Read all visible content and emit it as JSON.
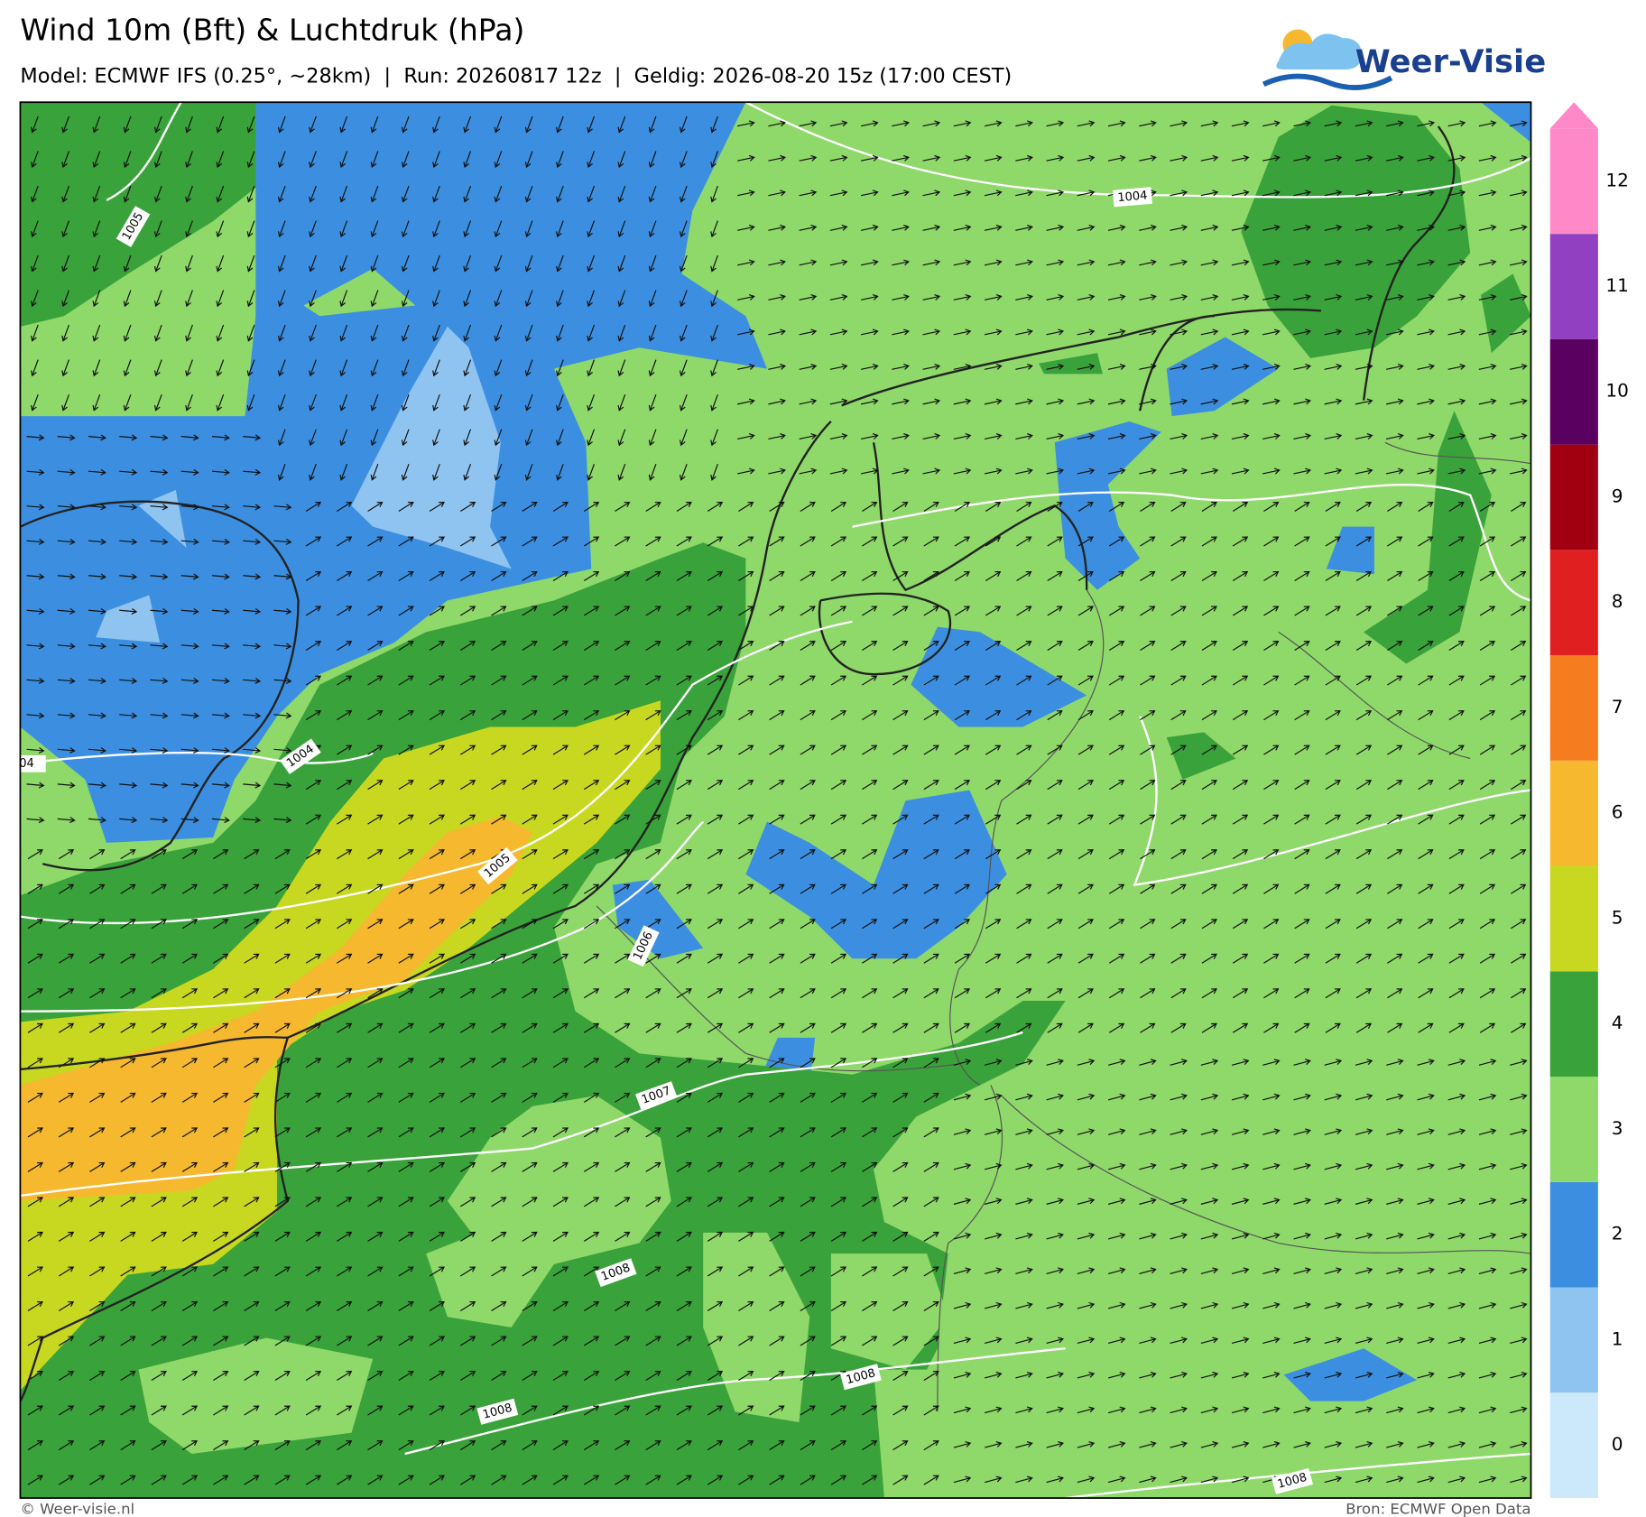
{
  "header": {
    "title": "Wind 10m (Bft) & Luchtdruk (hPa)",
    "subtitle": "Model: ECMWF IFS (0.25°, ~28km)  |  Run: 20260817 12z  |  Geldig: 2026-08-20 15z (17:00 CEST)"
  },
  "logo": {
    "text": "Weer-Visie"
  },
  "isobar_labels": [
    "1005",
    "1004",
    "1004",
    "04",
    "1005",
    "1006",
    "1007",
    "1008",
    "1008",
    "1008",
    "1008"
  ],
  "colorbar": {
    "levels": [
      "0",
      "1",
      "2",
      "3",
      "4",
      "5",
      "6",
      "7",
      "8",
      "9",
      "10",
      "11",
      "12"
    ],
    "colors": [
      "#cce8fb",
      "#90c4f0",
      "#3c8fe0",
      "#8fd86a",
      "#3aa23a",
      "#c8d820",
      "#f5b82e",
      "#f57c1f",
      "#e02020",
      "#a00010",
      "#5a0060",
      "#9040c0",
      "#ff88c8"
    ]
  },
  "footer": {
    "credit": "© Weer-visie.nl",
    "source": "Bron: ECMWF Open Data"
  }
}
